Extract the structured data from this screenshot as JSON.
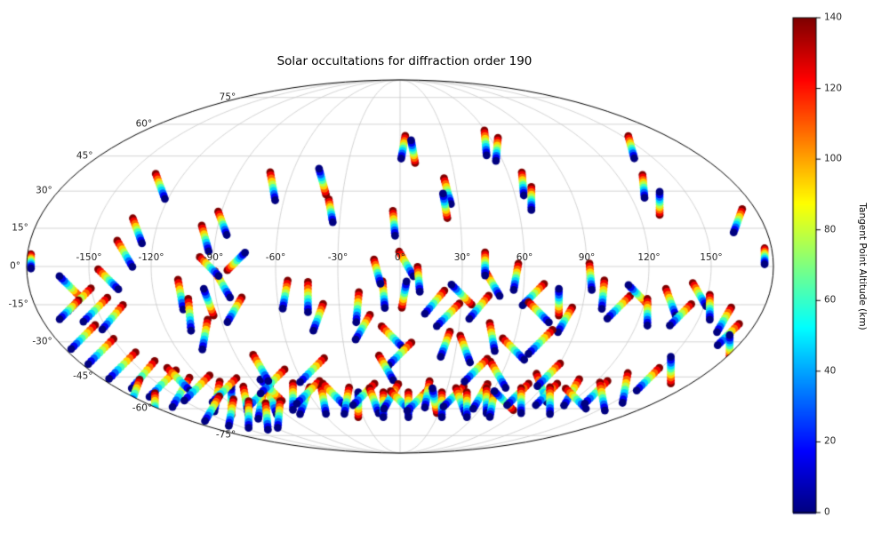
{
  "title": "Solar occultations for diffraction order 190",
  "background": "#ffffff",
  "colorbar": {
    "label": "Tangent Point Altitude (km)",
    "tick_values": [
      0,
      20,
      40,
      60,
      80,
      100,
      120,
      140
    ],
    "tick_labels": [
      "0",
      "20",
      "40",
      "60",
      "80",
      "100",
      "120",
      "140"
    ],
    "min": 0,
    "max": 140,
    "colormap": "jet"
  },
  "map": {
    "projection": "mollweide",
    "grid_color": "#c8c8c8",
    "outline_color": "#000000",
    "lon_tick_values": [
      -150,
      -120,
      -90,
      -60,
      -30,
      0,
      30,
      60,
      90,
      120,
      150
    ],
    "lon_tick_labels": [
      "-150°",
      "-120°",
      "-90°",
      "-60°",
      "-30°",
      "0°",
      "30°",
      "60°",
      "90°",
      "120°",
      "150°"
    ],
    "lat_tick_values": [
      75,
      60,
      45,
      30,
      15,
      0,
      -15,
      -30,
      -45,
      -60,
      -75
    ],
    "lat_tick_labels": [
      "75°",
      "60°",
      "45°",
      "30°",
      "15°",
      "0°",
      "-15°",
      "-30°",
      "-45°",
      "-60°",
      "-75°"
    ]
  },
  "chart_data": {
    "type": "scatter",
    "title": "Solar occultations for diffraction order 190",
    "projection": "mollweide",
    "colormap": "jet",
    "value_label": "Tangent Point Altitude (km)",
    "value_range": [
      0,
      140
    ],
    "points_per_track": 10,
    "n_tracks": 143,
    "track_format": [
      "lon_deg",
      "lat_deg",
      "screen_dir_deg_from_140km_end_to_0km_end",
      "length_px"
    ],
    "tracks": [
      [
        -128,
        32,
        70,
        30
      ],
      [
        -68,
        32,
        80,
        32
      ],
      [
        -42,
        34,
        255,
        30
      ],
      [
        -35,
        22,
        80,
        26
      ],
      [
        2,
        49,
        100,
        26
      ],
      [
        8,
        47,
        260,
        26
      ],
      [
        55,
        51,
        85,
        28
      ],
      [
        60,
        48,
        95,
        26
      ],
      [
        25,
        30,
        75,
        30
      ],
      [
        23,
        24,
        260,
        28
      ],
      [
        66,
        33,
        85,
        26
      ],
      [
        68,
        27,
        90,
        26
      ],
      [
        145,
        49,
        75,
        26
      ],
      [
        130,
        32,
        85,
        26
      ],
      [
        133,
        25,
        270,
        26
      ],
      [
        168,
        18,
        110,
        28
      ],
      [
        176,
        4,
        90,
        18
      ],
      [
        -3,
        17,
        85,
        28
      ],
      [
        3,
        1,
        60,
        32
      ],
      [
        -178,
        2,
        90,
        16
      ],
      [
        -160,
        -8,
        225,
        34
      ],
      [
        -157,
        -13,
        135,
        36
      ],
      [
        -151,
        -17,
        135,
        38
      ],
      [
        -144,
        -20,
        130,
        36
      ],
      [
        -164,
        -17,
        135,
        30
      ],
      [
        -141,
        -5,
        45,
        32
      ],
      [
        -133,
        5,
        60,
        34
      ],
      [
        -129,
        14,
        70,
        30
      ],
      [
        -107,
        -11,
        80,
        34
      ],
      [
        -105,
        -19,
        85,
        36
      ],
      [
        -101,
        -27,
        100,
        34
      ],
      [
        -94,
        -14,
        250,
        32
      ],
      [
        -86,
        -7,
        60,
        34
      ],
      [
        -82,
        -17,
        120,
        32
      ],
      [
        -92,
        0,
        45,
        30
      ],
      [
        -79,
        2,
        315,
        28
      ],
      [
        -95,
        11,
        75,
        30
      ],
      [
        -88,
        17,
        70,
        28
      ],
      [
        -56,
        -11,
        100,
        32
      ],
      [
        -45,
        -12,
        90,
        34
      ],
      [
        -41,
        -20,
        110,
        32
      ],
      [
        -21,
        -16,
        95,
        34
      ],
      [
        -19,
        -24,
        120,
        32
      ],
      [
        -8,
        -11,
        85,
        30
      ],
      [
        -11,
        -2,
        75,
        28
      ],
      [
        2,
        -11,
        280,
        30
      ],
      [
        9,
        -5,
        85,
        28
      ],
      [
        -4,
        -28,
        45,
        34
      ],
      [
        0,
        -35,
        135,
        36
      ],
      [
        -8,
        -41,
        60,
        32
      ],
      [
        17,
        -14,
        130,
        34
      ],
      [
        24,
        -19,
        135,
        36
      ],
      [
        30,
        -11,
        225,
        32
      ],
      [
        39,
        -16,
        130,
        34
      ],
      [
        45,
        -7,
        60,
        30
      ],
      [
        41,
        1,
        90,
        26
      ],
      [
        56,
        -4,
        100,
        30
      ],
      [
        65,
        -11,
        135,
        34
      ],
      [
        69,
        -18,
        45,
        32
      ],
      [
        78,
        -14,
        270,
        30
      ],
      [
        83,
        -21,
        120,
        32
      ],
      [
        74,
        -30,
        135,
        38
      ],
      [
        61,
        -33,
        45,
        34
      ],
      [
        48,
        -28,
        80,
        32
      ],
      [
        35,
        -33,
        70,
        32
      ],
      [
        24,
        -31,
        110,
        30
      ],
      [
        92,
        -4,
        85,
        30
      ],
      [
        99,
        -11,
        95,
        32
      ],
      [
        108,
        -16,
        135,
        36
      ],
      [
        116,
        -11,
        225,
        30
      ],
      [
        123,
        -18,
        90,
        30
      ],
      [
        133,
        -14,
        70,
        32
      ],
      [
        140,
        -19,
        135,
        34
      ],
      [
        146,
        -11,
        60,
        30
      ],
      [
        153,
        -16,
        90,
        28
      ],
      [
        163,
        -21,
        120,
        32
      ],
      [
        170,
        -27,
        135,
        34
      ],
      [
        176,
        -32,
        270,
        26
      ],
      [
        -165,
        -28,
        135,
        38
      ],
      [
        -162,
        -34,
        135,
        40
      ],
      [
        -158,
        -40,
        135,
        42
      ],
      [
        -152,
        -44,
        130,
        40
      ],
      [
        -147,
        -48,
        135,
        42
      ],
      [
        -143,
        -52,
        120,
        38
      ],
      [
        -134,
        -46,
        45,
        36
      ],
      [
        -129,
        -50,
        135,
        40
      ],
      [
        -123,
        -54,
        100,
        34
      ],
      [
        -117,
        -56,
        270,
        32
      ],
      [
        -113,
        -51,
        135,
        38
      ],
      [
        -107,
        -56,
        80,
        32
      ],
      [
        -100,
        -58,
        100,
        32
      ],
      [
        -95,
        -54,
        135,
        36
      ],
      [
        -89,
        -56,
        70,
        32
      ],
      [
        -83,
        -51,
        225,
        34
      ],
      [
        -78,
        -47,
        135,
        38
      ],
      [
        -80,
        -41,
        60,
        34
      ],
      [
        -72,
        -54,
        90,
        30
      ],
      [
        -66,
        -56,
        110,
        32
      ],
      [
        -60,
        -52,
        135,
        36
      ],
      [
        -53,
        -56,
        80,
        30
      ],
      [
        -51,
        -42,
        135,
        38
      ],
      [
        -44,
        -53,
        45,
        34
      ],
      [
        -37,
        -56,
        100,
        30
      ],
      [
        -30,
        -58,
        270,
        28
      ],
      [
        -24,
        -53,
        135,
        34
      ],
      [
        -18,
        -56,
        70,
        30
      ],
      [
        -12,
        -58,
        90,
        28
      ],
      [
        -6,
        -54,
        120,
        32
      ],
      [
        0,
        -56,
        45,
        30
      ],
      [
        6,
        -58,
        90,
        28
      ],
      [
        12,
        -56,
        135,
        32
      ],
      [
        18,
        -53,
        100,
        30
      ],
      [
        24,
        -56,
        260,
        28
      ],
      [
        30,
        -58,
        90,
        28
      ],
      [
        36,
        -54,
        135,
        32
      ],
      [
        42,
        -56,
        70,
        30
      ],
      [
        48,
        -58,
        90,
        28
      ],
      [
        54,
        -54,
        120,
        32
      ],
      [
        60,
        -56,
        90,
        28
      ],
      [
        66,
        -58,
        100,
        28
      ],
      [
        72,
        -56,
        225,
        30
      ],
      [
        78,
        -53,
        135,
        34
      ],
      [
        84,
        -56,
        90,
        28
      ],
      [
        90,
        -50,
        70,
        34
      ],
      [
        97,
        -53,
        135,
        34
      ],
      [
        104,
        -56,
        90,
        30
      ],
      [
        112,
        -52,
        120,
        34
      ],
      [
        120,
        -55,
        45,
        32
      ],
      [
        128,
        -52,
        135,
        36
      ],
      [
        136,
        -54,
        80,
        32
      ],
      [
        143,
        -50,
        100,
        34
      ],
      [
        150,
        -46,
        135,
        36
      ],
      [
        157,
        -42,
        270,
        30
      ],
      [
        88,
        -44,
        135,
        36
      ],
      [
        58,
        -44,
        60,
        34
      ],
      [
        44,
        -42,
        135,
        36
      ],
      [
        -173,
        -52,
        110,
        30
      ],
      [
        -176,
        -58,
        90,
        26
      ],
      [
        -140,
        -60,
        120,
        32
      ],
      [
        -131,
        -62,
        100,
        30
      ],
      [
        -120,
        -63,
        90,
        30
      ],
      [
        -108,
        -64,
        85,
        30
      ],
      [
        -96,
        -63,
        95,
        30
      ]
    ]
  }
}
